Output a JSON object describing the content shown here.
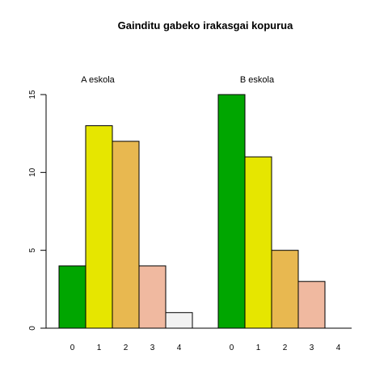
{
  "chart_data": {
    "type": "bar",
    "title": "Gainditu gabeko irakasgai kopurua",
    "xlabel": "",
    "ylabel": "",
    "ylim": [
      0,
      15
    ],
    "yticks": [
      0,
      5,
      10,
      15
    ],
    "grid": false,
    "groups": [
      {
        "label": "A eskola",
        "categories": [
          "0",
          "1",
          "2",
          "3",
          "4"
        ],
        "values": [
          4,
          13,
          12,
          4,
          1
        ]
      },
      {
        "label": "B eskola",
        "categories": [
          "0",
          "1",
          "2",
          "3",
          "4"
        ],
        "values": [
          15,
          11,
          5,
          3,
          0
        ]
      }
    ],
    "colors": [
      "#00a600",
      "#e6e600",
      "#e8b850",
      "#f0b9a0",
      "#f2f2f2"
    ]
  }
}
